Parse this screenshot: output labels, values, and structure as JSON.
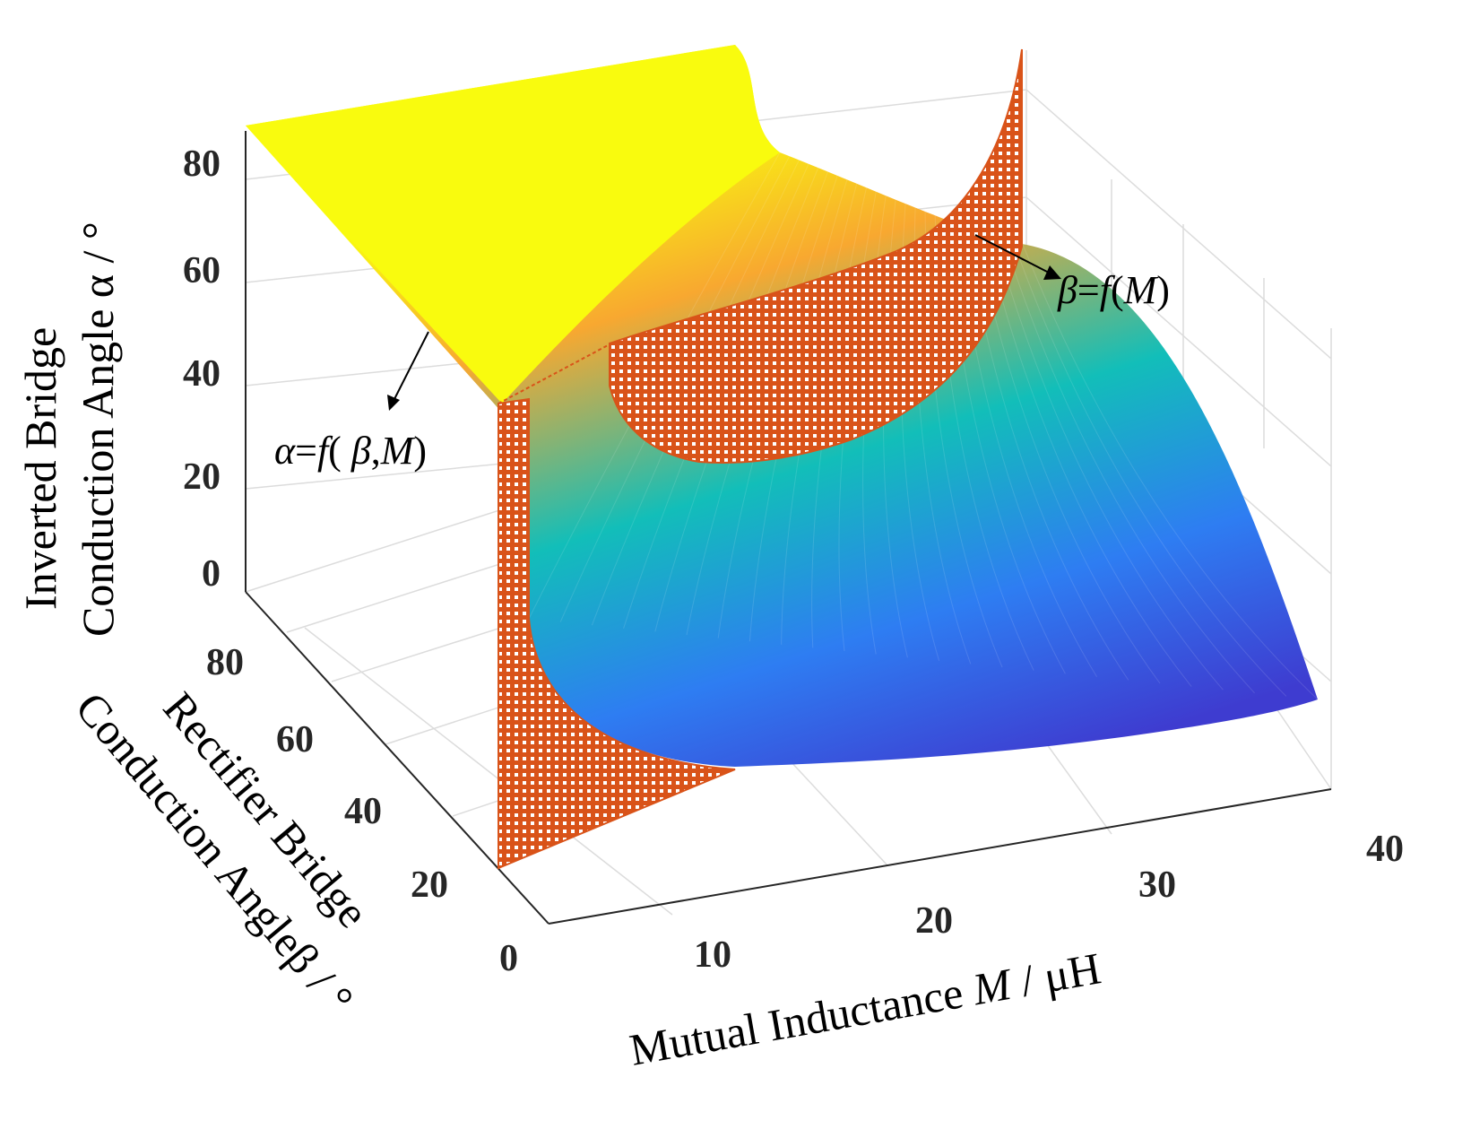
{
  "chart_data": {
    "type": "surface3d",
    "title": "",
    "x_axis": {
      "label": "Mutual Inductance M / μH",
      "label_parts": [
        "Mutual Inductance ",
        "M",
        " / μH"
      ],
      "ticks": [
        "10",
        "20",
        "30",
        "40"
      ],
      "range": [
        5,
        40
      ]
    },
    "y_axis": {
      "label": "Rectifier Bridge Conduction Angleβ / °",
      "label_lines": [
        "Rectifier Bridge",
        "Conduction Angleβ / °"
      ],
      "ticks": [
        "0",
        "20",
        "40",
        "60",
        "80"
      ],
      "range": [
        0,
        90
      ]
    },
    "z_axis": {
      "label": "Inverted Bridge Conduction Angle α / °",
      "label_lines": [
        "Inverted Bridge",
        "Conduction Angle α / °"
      ],
      "ticks": [
        "0",
        "20",
        "40",
        "60",
        "80"
      ],
      "range": [
        0,
        90
      ]
    },
    "series": [
      {
        "name": "α=f( β,M)",
        "kind": "surface",
        "colormap": "parula",
        "description_values": {
          "M": [
            5,
            10,
            15,
            20,
            25,
            30,
            35,
            40
          ],
          "alpha_at_beta_0": [
            90,
            40,
            26,
            20,
            15,
            10,
            6,
            3
          ],
          "alpha_at_beta_90": [
            90,
            90,
            90,
            90,
            88,
            80,
            72,
            64
          ]
        }
      },
      {
        "name": "β=f(M)",
        "kind": "boundary-curtain",
        "color": "#D95319",
        "M": [
          5,
          8,
          11,
          14,
          17,
          20
        ],
        "beta": [
          90,
          70,
          55,
          45,
          40,
          38
        ]
      }
    ],
    "annotations": [
      {
        "text_parts": [
          "α",
          "=",
          "f",
          "( ",
          "β",
          ",",
          "M",
          ")"
        ],
        "target": "surface"
      },
      {
        "text_parts": [
          "β",
          "=",
          "f",
          "(",
          "M",
          ")"
        ],
        "target": "curtain"
      }
    ],
    "colors": {
      "yellow": "#F9FB0E",
      "orange": "#F8A830",
      "teal": "#12BEB9",
      "blue": "#2E7DF2",
      "indigo": "#3E3CD0",
      "curtain": "#D95319"
    }
  }
}
